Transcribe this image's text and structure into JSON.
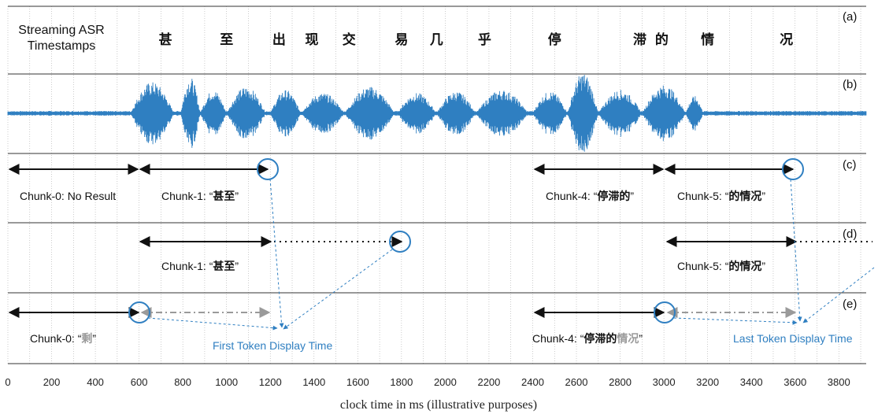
{
  "header": {
    "title_line1": "Streaming ASR",
    "title_line2": "Timestamps",
    "characters": [
      "甚",
      "至",
      "出",
      "现",
      "交",
      "易",
      "几",
      "乎",
      "停",
      "滞",
      "的",
      "情",
      "况"
    ],
    "char_times": [
      720,
      1000,
      1240,
      1390,
      1560,
      1800,
      1960,
      2180,
      2500,
      2890,
      2990,
      3200,
      3560
    ]
  },
  "panels": {
    "a": "(a)",
    "b": "(b)",
    "c": "(c)",
    "d": "(d)",
    "e": "(e)"
  },
  "row_c": {
    "chunk0": "Chunk-0: No Result",
    "chunk1_prefix": "Chunk-1: “",
    "chunk1_text": "甚至",
    "chunk1_suffix": "”",
    "chunk4_prefix": "Chunk-4: “",
    "chunk4_text": "停滞的",
    "chunk4_suffix": "”",
    "chunk5_prefix": "Chunk-5: “",
    "chunk5_text": "的情况",
    "chunk5_suffix": "”"
  },
  "row_d": {
    "chunk1_prefix": "Chunk-1: “",
    "chunk1_text": "甚至",
    "chunk1_suffix": "”",
    "chunk5_prefix": "Chunk-5: “",
    "chunk5_text": "的情况",
    "chunk5_suffix": "”"
  },
  "row_e": {
    "chunk0_prefix": "Chunk-0: “",
    "chunk0_text": "剩",
    "chunk0_suffix": "”",
    "chunk4_prefix": "Chunk-4: “",
    "chunk4_text_bold": "停滞的",
    "chunk4_text_grey": "情况",
    "chunk4_suffix": "”",
    "first_token": "First Token Display Time",
    "last_token": "Last Token Display Time"
  },
  "axis": {
    "ticks": [
      0,
      200,
      400,
      600,
      800,
      1000,
      1200,
      1400,
      1600,
      1800,
      2000,
      2200,
      2400,
      2600,
      2800,
      3000,
      3200,
      3400,
      3600,
      3800
    ],
    "label": "clock time in ms (illustrative purposes)"
  },
  "colors": {
    "accent_blue": "#2f7fc1",
    "arrow_black": "#111111",
    "grey": "#9a9a9a"
  }
}
